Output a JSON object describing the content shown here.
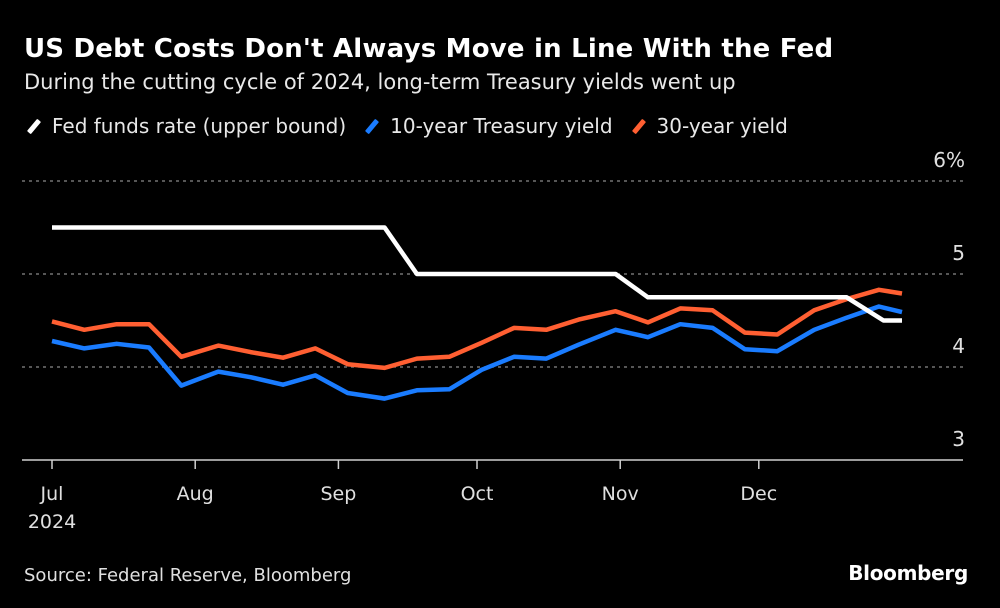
{
  "header": {
    "title": "US Debt Costs Don't Always Move in Line With the Fed",
    "subtitle": "During the cutting cycle of 2024, long-term Treasury yields went up"
  },
  "legend": [
    {
      "label": "Fed funds rate (upper bound)",
      "color": "#ffffff"
    },
    {
      "label": "10-year Treasury yield",
      "color": "#1a7cff"
    },
    {
      "label": "30-year yield",
      "color": "#ff5f32"
    }
  ],
  "footer": {
    "source": "Source: Federal Reserve, Bloomberg",
    "brand": "Bloomberg"
  },
  "chart_data": {
    "type": "line",
    "title": "US Debt Costs Don't Always Move in Line With the Fed",
    "subtitle": "During the cutting cycle of 2024, long-term Treasury yields went up",
    "xlabel": "",
    "ylabel": "",
    "ylim": [
      3,
      6
    ],
    "y_ticks": [
      {
        "value": 6,
        "label": "6%"
      },
      {
        "value": 5,
        "label": "5"
      },
      {
        "value": 4,
        "label": "4"
      },
      {
        "value": 3,
        "label": "3"
      }
    ],
    "x_range_days": [
      0,
      184
    ],
    "x_ticks": [
      {
        "day": 0,
        "label": "Jul",
        "sublabel": "2024"
      },
      {
        "day": 31,
        "label": "Aug",
        "sublabel": ""
      },
      {
        "day": 62,
        "label": "Sep",
        "sublabel": ""
      },
      {
        "day": 92,
        "label": "Oct",
        "sublabel": ""
      },
      {
        "day": 123,
        "label": "Nov",
        "sublabel": ""
      },
      {
        "day": 153,
        "label": "Dec",
        "sublabel": ""
      }
    ],
    "grid": true,
    "legend_position": "top-left",
    "series": [
      {
        "name": "Fed funds rate (upper bound)",
        "color": "#ffffff",
        "x_days": [
          0,
          72,
          79,
          122,
          129,
          172,
          180,
          184
        ],
        "values": [
          5.5,
          5.5,
          5.0,
          5.0,
          4.75,
          4.75,
          4.5,
          4.5
        ]
      },
      {
        "name": "10-year Treasury yield",
        "color": "#1a7cff",
        "x_days": [
          0,
          7,
          14,
          21,
          28,
          36,
          43,
          50,
          57,
          64,
          72,
          79,
          86,
          93,
          100,
          107,
          114,
          122,
          129,
          136,
          143,
          150,
          157,
          165,
          172,
          179,
          184
        ],
        "values": [
          4.28,
          4.2,
          4.25,
          4.21,
          3.8,
          3.95,
          3.89,
          3.81,
          3.91,
          3.72,
          3.66,
          3.75,
          3.76,
          3.97,
          4.11,
          4.09,
          4.24,
          4.4,
          4.32,
          4.46,
          4.42,
          4.19,
          4.17,
          4.4,
          4.53,
          4.65,
          4.59
        ]
      },
      {
        "name": "30-year yield",
        "color": "#ff5f32",
        "x_days": [
          0,
          7,
          14,
          21,
          28,
          36,
          43,
          50,
          57,
          64,
          72,
          79,
          86,
          93,
          100,
          107,
          114,
          122,
          129,
          136,
          143,
          150,
          157,
          165,
          172,
          179,
          184
        ],
        "values": [
          4.49,
          4.4,
          4.46,
          4.46,
          4.11,
          4.23,
          4.16,
          4.1,
          4.2,
          4.03,
          3.99,
          4.09,
          4.11,
          4.26,
          4.42,
          4.4,
          4.51,
          4.6,
          4.48,
          4.63,
          4.61,
          4.37,
          4.35,
          4.61,
          4.73,
          4.83,
          4.79
        ]
      }
    ]
  }
}
